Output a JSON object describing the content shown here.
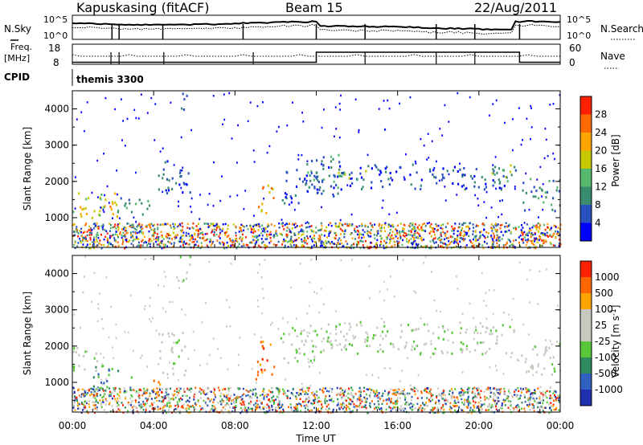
{
  "header": {
    "station": "Kapuskasing (fitACF)",
    "beam": "Beam 15",
    "date": "22/Aug/2011"
  },
  "top_panels": {
    "nsky_label": "N.Sky",
    "nsky_ticks": [
      "10^5",
      "10^0"
    ],
    "nsearch_label": "N.Search",
    "nsearch_ticks": [
      "10^5",
      "10^0"
    ],
    "freq_label_1": "Freq.",
    "freq_label_2": "[MHz]",
    "freq_ticks": [
      "18",
      "8"
    ],
    "nave_label": "Nave",
    "nave_ticks": [
      "60",
      "0"
    ],
    "cpid_label": "CPID",
    "cpid_value": "themis 3300"
  },
  "colors": {
    "power_scale": [
      "#0000ff",
      "#2a52be",
      "#3a8c6e",
      "#55b86e",
      "#c8c800",
      "#ffa500",
      "#ff6a00",
      "#ff2000"
    ],
    "velocity_scale": [
      "#2030b0",
      "#3060c0",
      "#2f8a5f",
      "#58c83a",
      "#c8c8c0",
      "#c8c8c0",
      "#ffa500",
      "#ff6600",
      "#ff2000"
    ]
  },
  "chart_data": [
    {
      "type": "heatmap",
      "panel": "power",
      "ylabel": "Slant Range [km]",
      "yticks": [
        "1000",
        "2000",
        "3000",
        "4000"
      ],
      "ylim": [
        180,
        4500
      ],
      "xlim": [
        0,
        24
      ],
      "xticks": [
        "00:00",
        "04:00",
        "08:00",
        "12:00",
        "16:00",
        "20:00",
        "00:00"
      ],
      "colorbar_label": "Power [dB]",
      "colorbar_ticks": [
        "28",
        "24",
        "20",
        "16",
        "12",
        "8",
        "4"
      ],
      "regions": [
        {
          "t0": 0.0,
          "t1": 1.6,
          "r0": 950,
          "r1": 1800,
          "c": 4
        },
        {
          "t0": 1.5,
          "t1": 2.2,
          "r0": 900,
          "r1": 1700,
          "c": 5
        },
        {
          "t0": 2.2,
          "t1": 4.0,
          "r0": 1050,
          "r1": 1600,
          "c": 2
        },
        {
          "t0": 4.0,
          "t1": 5.8,
          "r0": 1700,
          "r1": 2600,
          "c": 1
        },
        {
          "t0": 5.0,
          "t1": 5.6,
          "r0": 4000,
          "r1": 4500,
          "c": 1
        },
        {
          "t0": 9.1,
          "t1": 9.9,
          "r0": 1100,
          "r1": 2000,
          "c": 5
        },
        {
          "t0": 10.3,
          "t1": 12.0,
          "r0": 1400,
          "r1": 2500,
          "c": 1
        },
        {
          "t0": 11.5,
          "t1": 13.2,
          "r0": 1600,
          "r1": 2800,
          "c": 2
        },
        {
          "t0": 12.0,
          "t1": 21.8,
          "r0": 1800,
          "r1": 2500,
          "c": 1
        },
        {
          "t0": 13.0,
          "t1": 14.5,
          "r0": 2000,
          "r1": 2400,
          "c": 3
        },
        {
          "t0": 20.6,
          "t1": 21.8,
          "r0": 1900,
          "r1": 2500,
          "c": 3
        },
        {
          "t0": 22.0,
          "t1": 24.0,
          "r0": 1200,
          "r1": 2100,
          "c": 2
        }
      ]
    },
    {
      "type": "heatmap",
      "panel": "velocity",
      "xlabel": "Time UT",
      "ylabel": "Slant Range [km]",
      "yticks": [
        "1000",
        "2000",
        "3000",
        "4000"
      ],
      "ylim": [
        180,
        4500
      ],
      "xlim": [
        0,
        24
      ],
      "xticks": [
        "00:00",
        "04:00",
        "08:00",
        "12:00",
        "16:00",
        "20:00",
        "00:00"
      ],
      "colorbar_label": "Velocity [m s",
      "colorbar_label_sup": "-1",
      "colorbar_label_end": "]",
      "colorbar_ticks": [
        "1000",
        "500",
        "100",
        "25",
        "-25",
        "-100",
        "-500",
        "-1000"
      ],
      "regions": [
        {
          "t0": 0.0,
          "t1": 1.2,
          "r0": 1200,
          "r1": 2000,
          "c": 4
        },
        {
          "t0": 1.0,
          "t1": 2.5,
          "r0": 700,
          "r1": 1600,
          "c": 2
        },
        {
          "t0": 2.5,
          "t1": 3.5,
          "r0": 700,
          "r1": 1200,
          "c": 3
        },
        {
          "t0": 3.4,
          "t1": 4.4,
          "r0": 700,
          "r1": 1100,
          "c": 6
        },
        {
          "t0": 4.2,
          "t1": 5.6,
          "r0": 1200,
          "r1": 2400,
          "c": 4
        },
        {
          "t0": 5.0,
          "t1": 5.8,
          "r0": 3800,
          "r1": 4500,
          "c": 4
        },
        {
          "t0": 9.0,
          "t1": 10.0,
          "r0": 1100,
          "r1": 2200,
          "c": 7
        },
        {
          "t0": 10.2,
          "t1": 12.0,
          "r0": 1400,
          "r1": 2600,
          "c": 4
        },
        {
          "t0": 12.0,
          "t1": 21.8,
          "r0": 1800,
          "r1": 2700,
          "c": 4
        },
        {
          "t0": 22.0,
          "t1": 24.0,
          "r0": 1200,
          "r1": 2100,
          "c": 4
        }
      ]
    }
  ]
}
